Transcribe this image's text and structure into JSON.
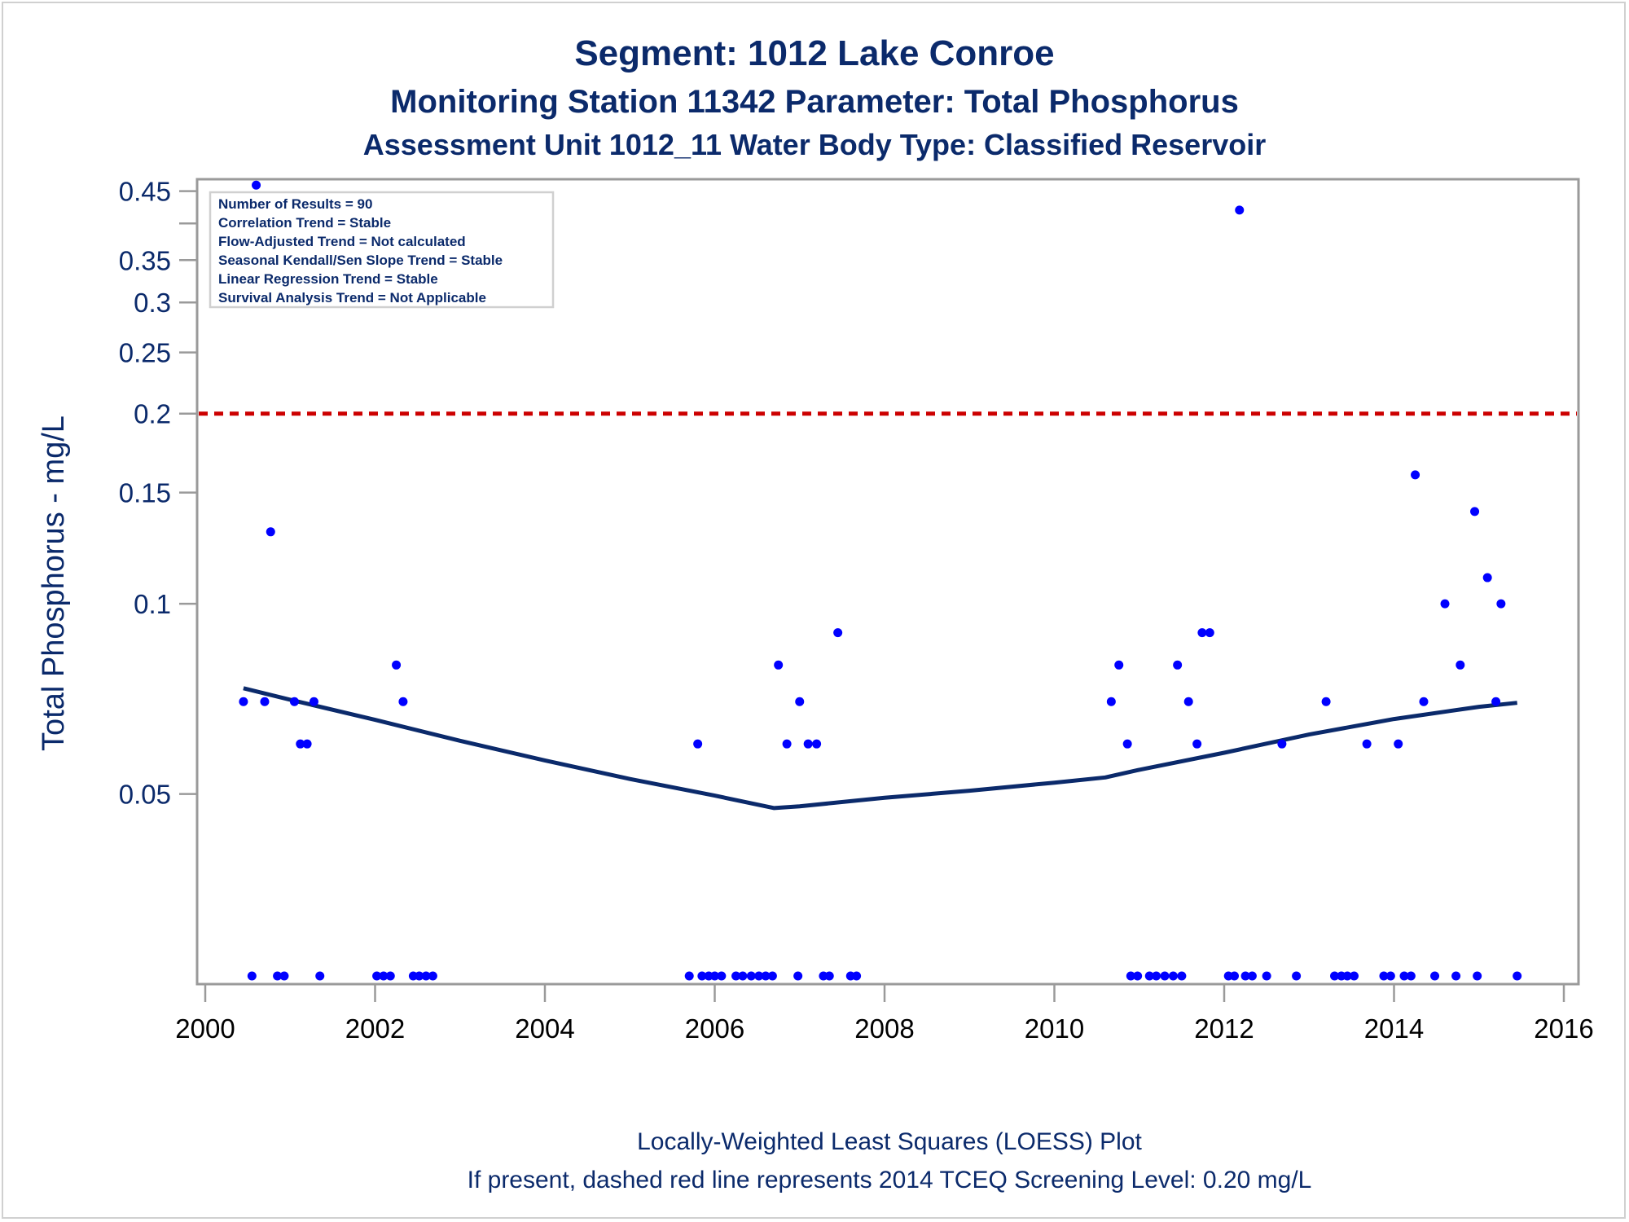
{
  "chart_data": {
    "type": "scatter",
    "title": "Segment: 1012  Lake Conroe",
    "subtitle": "Monitoring Station 11342 Parameter: Total Phosphorus",
    "subtitle2": "Assessment Unit 1012_11   Water Body Type: Classified Reservoir",
    "xlabel": "",
    "ylabel": "Total Phosphorus - mg/L",
    "footnote1": "Locally-Weighted Least Squares (LOESS) Plot",
    "footnote2": "If present, dashed red line represents 2014 TCEQ Screening Level: 0.20 mg/L",
    "xlim": [
      2000,
      2016
    ],
    "ylim": [
      0.025,
      0.47
    ],
    "yscale": "log",
    "x_ticks": [
      2000,
      2002,
      2004,
      2006,
      2008,
      2010,
      2012,
      2014,
      2016
    ],
    "x_tick_labels": [
      "2000",
      "2002",
      "2004",
      "2006",
      "2008",
      "2010",
      "2012",
      "2014",
      "2016"
    ],
    "y_ticks": [
      0.05,
      0.1,
      0.15,
      0.2,
      0.25,
      0.3,
      0.35,
      0.45
    ],
    "y_tick_labels": [
      "0.05",
      "0.1",
      "0.15",
      "0.2",
      "0.25",
      "0.3",
      "0.35",
      "0.45"
    ],
    "y_minor_ticks": [
      0.4
    ],
    "legend_position": "top-left",
    "legend": [
      "Number of Results = 90",
      "Correlation Trend = Stable",
      "Flow-Adjusted Trend = Not calculated",
      "Seasonal Kendall/Sen Slope Trend = Stable",
      "Linear Regression Trend = Stable",
      "Survival Analysis Trend = Not Applicable"
    ],
    "screening_level": {
      "value": 0.2,
      "color": "#cc0000",
      "style": "dashed"
    },
    "colors": {
      "points": "#0000ff",
      "loess": "#0b2a6b",
      "text": "#0b2a6b",
      "frame": "#9a9a9a"
    },
    "points": [
      {
        "x": 2000.45,
        "y": 0.07
      },
      {
        "x": 2000.6,
        "y": 0.46
      },
      {
        "x": 2000.7,
        "y": 0.07
      },
      {
        "x": 2000.77,
        "y": 0.13
      },
      {
        "x": 2001.05,
        "y": 0.07
      },
      {
        "x": 2001.12,
        "y": 0.06
      },
      {
        "x": 2001.2,
        "y": 0.06
      },
      {
        "x": 2001.28,
        "y": 0.07
      },
      {
        "x": 2002.25,
        "y": 0.08
      },
      {
        "x": 2002.33,
        "y": 0.07
      },
      {
        "x": 2005.8,
        "y": 0.06
      },
      {
        "x": 2006.75,
        "y": 0.08
      },
      {
        "x": 2006.85,
        "y": 0.06
      },
      {
        "x": 2007.0,
        "y": 0.07
      },
      {
        "x": 2007.1,
        "y": 0.06
      },
      {
        "x": 2007.2,
        "y": 0.06
      },
      {
        "x": 2007.45,
        "y": 0.09
      },
      {
        "x": 2010.67,
        "y": 0.07
      },
      {
        "x": 2010.76,
        "y": 0.08
      },
      {
        "x": 2010.86,
        "y": 0.06
      },
      {
        "x": 2011.45,
        "y": 0.08
      },
      {
        "x": 2011.58,
        "y": 0.07
      },
      {
        "x": 2011.68,
        "y": 0.06
      },
      {
        "x": 2011.74,
        "y": 0.09
      },
      {
        "x": 2011.83,
        "y": 0.09
      },
      {
        "x": 2012.18,
        "y": 0.42
      },
      {
        "x": 2012.68,
        "y": 0.06
      },
      {
        "x": 2013.2,
        "y": 0.07
      },
      {
        "x": 2013.68,
        "y": 0.06
      },
      {
        "x": 2014.05,
        "y": 0.06
      },
      {
        "x": 2014.25,
        "y": 0.16
      },
      {
        "x": 2014.35,
        "y": 0.07
      },
      {
        "x": 2014.6,
        "y": 0.1
      },
      {
        "x": 2014.78,
        "y": 0.08
      },
      {
        "x": 2014.95,
        "y": 0.14
      },
      {
        "x": 2015.1,
        "y": 0.11
      },
      {
        "x": 2015.2,
        "y": 0.07
      },
      {
        "x": 2015.26,
        "y": 0.1
      }
    ],
    "below_range_points_x": [
      2000.55,
      2000.85,
      2000.93,
      2001.35,
      2002.02,
      2002.1,
      2002.18,
      2002.45,
      2002.52,
      2002.6,
      2002.68,
      2005.7,
      2005.85,
      2005.93,
      2006.0,
      2006.08,
      2006.25,
      2006.33,
      2006.43,
      2006.52,
      2006.6,
      2006.68,
      2006.98,
      2007.28,
      2007.35,
      2007.6,
      2007.67,
      2010.9,
      2010.98,
      2011.12,
      2011.2,
      2011.3,
      2011.4,
      2011.5,
      2012.05,
      2012.12,
      2012.25,
      2012.33,
      2012.5,
      2012.85,
      2013.3,
      2013.38,
      2013.45,
      2013.53,
      2013.88,
      2013.96,
      2014.12,
      2014.2,
      2014.48,
      2014.73,
      2014.98,
      2015.45
    ],
    "loess": [
      {
        "x": 2000.45,
        "y": 0.0735
      },
      {
        "x": 2001.0,
        "y": 0.0705
      },
      {
        "x": 2002.0,
        "y": 0.0655
      },
      {
        "x": 2003.0,
        "y": 0.0607
      },
      {
        "x": 2004.0,
        "y": 0.0565
      },
      {
        "x": 2005.0,
        "y": 0.0528
      },
      {
        "x": 2006.0,
        "y": 0.0497
      },
      {
        "x": 2006.7,
        "y": 0.0475
      },
      {
        "x": 2007.0,
        "y": 0.0478
      },
      {
        "x": 2008.0,
        "y": 0.0493
      },
      {
        "x": 2009.0,
        "y": 0.0506
      },
      {
        "x": 2010.0,
        "y": 0.0521
      },
      {
        "x": 2010.6,
        "y": 0.0531
      },
      {
        "x": 2011.0,
        "y": 0.0546
      },
      {
        "x": 2012.0,
        "y": 0.0581
      },
      {
        "x": 2013.0,
        "y": 0.0621
      },
      {
        "x": 2014.0,
        "y": 0.0657
      },
      {
        "x": 2015.0,
        "y": 0.0687
      },
      {
        "x": 2015.45,
        "y": 0.0697
      }
    ]
  }
}
